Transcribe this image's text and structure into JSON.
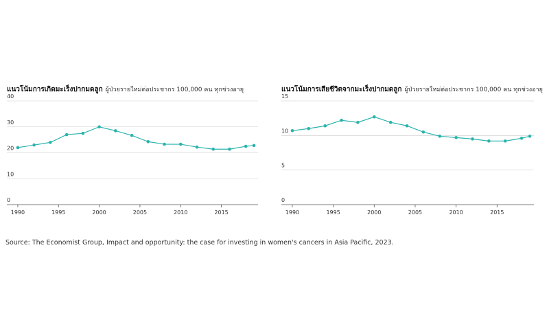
{
  "chart_data": [
    {
      "type": "line",
      "title": "แนวโน้มการเกิดมะเร็งปากมดลูก",
      "subtitle": "ผู้ป่วยรายใหม่ต่อประชากร 100,000 คน ทุกช่วงอายุ",
      "x": [
        1990,
        1992,
        1994,
        1996,
        1998,
        2000,
        2002,
        2004,
        2006,
        2008,
        2010,
        2012,
        2014,
        2016,
        2018,
        2019
      ],
      "series": [
        {
          "color": "#2bb3ad",
          "values": [
            22,
            23,
            24,
            27,
            27.5,
            30,
            28.5,
            26.7,
            24.3,
            23.3,
            23.3,
            22.2,
            21.4,
            21.4,
            22.5,
            22.8
          ]
        }
      ],
      "xlim": [
        1989.5,
        2019.5
      ],
      "xticks": [
        1990,
        1995,
        2000,
        2005,
        2010,
        2015
      ],
      "ylim": [
        0,
        40
      ],
      "yticks": [
        0,
        10,
        20,
        30,
        40
      ],
      "grid": true
    },
    {
      "type": "line",
      "title": "แนวโน้มการเสียชีวิตจากมะเร็งปากมดลูก",
      "subtitle": "ผู้ป่วยรายใหม่ต่อประชากร 100,000 คน ทุกช่วงอายุ",
      "x": [
        1990,
        1992,
        1994,
        1996,
        1998,
        2000,
        2002,
        2004,
        2006,
        2008,
        2010,
        2012,
        2014,
        2016,
        2018,
        2019
      ],
      "series": [
        {
          "color": "#2bb3ad",
          "values": [
            10.7,
            11,
            11.4,
            12.2,
            11.9,
            12.7,
            11.9,
            11.4,
            10.5,
            9.9,
            9.7,
            9.5,
            9.2,
            9.2,
            9.6,
            9.9
          ]
        }
      ],
      "xlim": [
        1989.5,
        2019.5
      ],
      "xticks": [
        1990,
        1995,
        2000,
        2005,
        2010,
        2015
      ],
      "ylim": [
        0,
        15
      ],
      "yticks": [
        0,
        5,
        10,
        15
      ],
      "grid": true
    }
  ],
  "source": "Source: The Economist Group, Impact and opportunity: the case for investing in women's cancers in Asia Pacific, 2023."
}
